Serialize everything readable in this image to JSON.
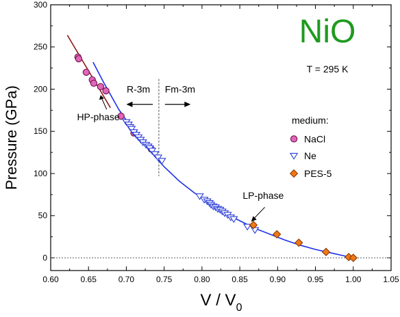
{
  "chart_data": {
    "type": "scatter",
    "title": "NiO",
    "subtitle": "T = 295 K",
    "xlabel": "V / V",
    "xlabel_sub": "0",
    "ylabel": "Pressure  (GPa)",
    "xlim": [
      0.6,
      1.05
    ],
    "ylim": [
      -15,
      300
    ],
    "xticks": [
      "0.60",
      "0.65",
      "0.70",
      "0.75",
      "0.80",
      "0.85",
      "0.90",
      "0.95",
      "1.00",
      "1.05"
    ],
    "yticks": [
      "0",
      "50",
      "100",
      "150",
      "200",
      "250",
      "300"
    ],
    "grid": false,
    "legend": {
      "title": "medium:",
      "position": "right",
      "entries": [
        "NaCl",
        "Ne",
        "PES-5"
      ]
    },
    "colors": {
      "nacl_fill": "#e066b8",
      "nacl_edge": "#7a1a55",
      "ne_edge": "#2b3fd8",
      "pes_fill": "#f07818",
      "pes_edge": "#8a3a00",
      "lp_fit": "#1a2fe8",
      "hp_fit": "#8b1a1a",
      "title_color": "#1f9a1f"
    },
    "annotations": {
      "r3m": "R-3m",
      "fm3m": "Fm-3m",
      "hp_phase": "HP-phase",
      "lp_phase": "LP-phase"
    },
    "transition_v": 0.743,
    "series": [
      {
        "name": "NaCl",
        "marker": "circle",
        "x": [
          0.636,
          0.637,
          0.647,
          0.655,
          0.657,
          0.666,
          0.673,
          0.693,
          0.71,
          0.733
        ],
        "y": [
          238,
          236,
          220,
          211,
          207,
          203,
          198,
          168,
          148,
          129
        ]
      },
      {
        "name": "Ne",
        "marker": "triangle-down",
        "x": [
          0.7,
          0.703,
          0.705,
          0.707,
          0.71,
          0.713,
          0.716,
          0.719,
          0.722,
          0.726,
          0.729,
          0.731,
          0.734,
          0.738,
          0.742,
          0.747,
          0.797,
          0.803,
          0.807,
          0.81,
          0.812,
          0.815,
          0.818,
          0.821,
          0.824,
          0.827,
          0.83,
          0.834,
          0.838,
          0.842,
          0.86,
          0.87
        ],
        "y": [
          161,
          158,
          155,
          153,
          149,
          146,
          143,
          140,
          137,
          134,
          132,
          130,
          127,
          123,
          119,
          115,
          73,
          69,
          67,
          65,
          63,
          61,
          60,
          58,
          57,
          55,
          53,
          51,
          48,
          46,
          37,
          33
        ]
      },
      {
        "name": "PES-5",
        "marker": "diamond",
        "x": [
          0.868,
          0.899,
          0.928,
          0.964,
          0.994,
          1.0
        ],
        "y": [
          39,
          28,
          18,
          7,
          1,
          0
        ]
      }
    ],
    "lp_fit": {
      "x": [
        0.656,
        0.67,
        0.69,
        0.71,
        0.73,
        0.75,
        0.77,
        0.79,
        0.81,
        0.83,
        0.85,
        0.87,
        0.89,
        0.91,
        0.93,
        0.95,
        0.97,
        0.99,
        1.0
      ],
      "y": [
        232,
        208,
        176,
        150,
        128,
        108,
        91,
        77,
        65,
        53,
        44,
        35,
        28,
        21,
        15,
        10,
        6,
        2,
        0
      ]
    },
    "hp_fit": {
      "x": [
        0.622,
        0.679
      ],
      "y": [
        264,
        178
      ]
    }
  }
}
